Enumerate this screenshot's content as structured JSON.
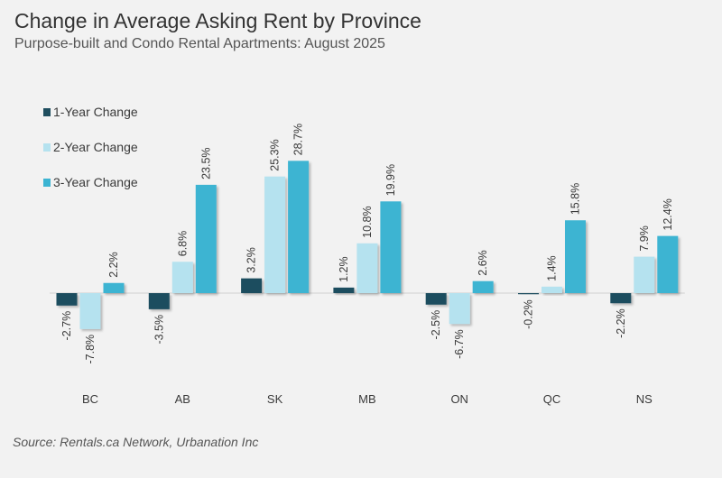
{
  "title": "Change in Average Asking Rent by Province",
  "subtitle": "Purpose-built and Condo Rental Apartments: August 2025",
  "source": "Source: Rentals.ca Network, Urbanation Inc",
  "colors": {
    "one_year": "#1f4e5f",
    "two_year": "#b5e2ef",
    "three_year": "#3cb4d2",
    "background": "#f2f2f2"
  },
  "chart_data": {
    "type": "bar",
    "title": "Change in Average Asking Rent by Province",
    "subtitle": "Purpose-built and Condo Rental Apartments: August 2025",
    "categories": [
      "BC",
      "AB",
      "SK",
      "MB",
      "ON",
      "QC",
      "NS"
    ],
    "series": [
      {
        "name": "1-Year Change",
        "values": [
          -2.7,
          -3.5,
          3.2,
          1.2,
          -2.5,
          -0.2,
          -2.2
        ],
        "labels": [
          "-2.7%",
          "-3.5%",
          "3.2%",
          "1.2%",
          "-2.5%",
          "-0.2%",
          "-2.2%"
        ]
      },
      {
        "name": "2-Year Change",
        "values": [
          -7.8,
          6.8,
          25.3,
          10.8,
          -6.7,
          1.4,
          7.9
        ],
        "labels": [
          "-7.8%",
          "6.8%",
          "25.3%",
          "10.8%",
          "-6.7%",
          "1.4%",
          "7.9%"
        ]
      },
      {
        "name": "3-Year Change",
        "values": [
          2.2,
          23.5,
          28.7,
          19.9,
          2.6,
          15.8,
          12.4
        ],
        "labels": [
          "2.2%",
          "23.5%",
          "28.7%",
          "19.9%",
          "2.6%",
          "15.8%",
          "12.4%"
        ]
      }
    ],
    "legend_position": "top-left",
    "grid": false,
    "data_label_rotation": -90
  }
}
